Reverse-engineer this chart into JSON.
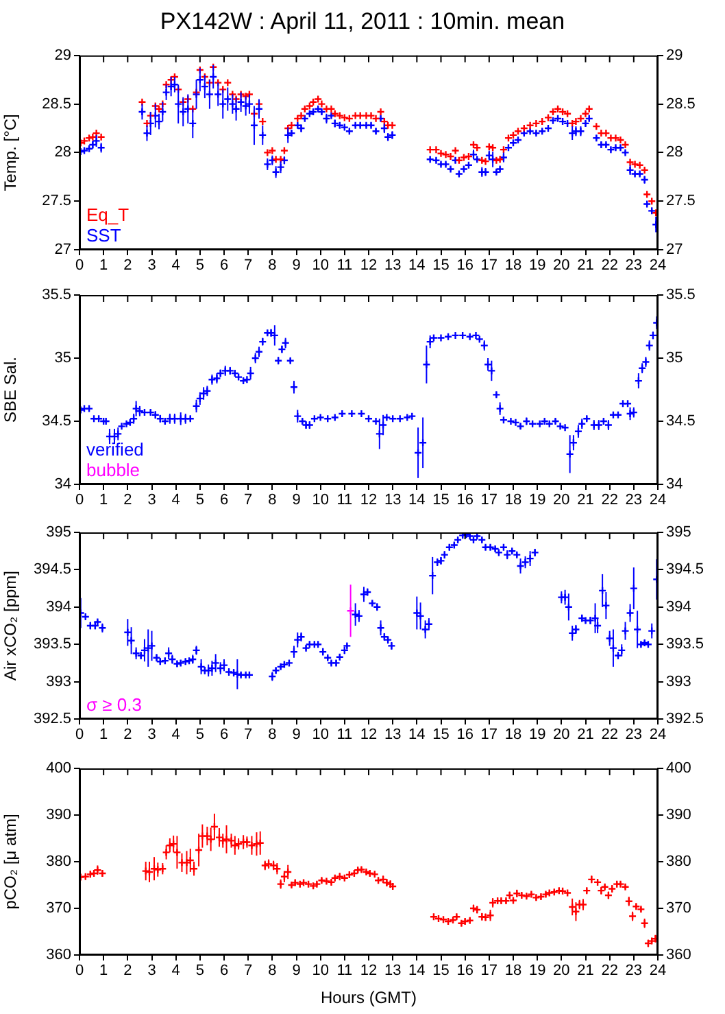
{
  "chart_data": [
    {
      "type": "scatter",
      "title": "PX142W : April 11, 2011 : 10min. mean",
      "ylabel": "Temp. [°C]",
      "xlim": [
        0,
        24
      ],
      "xticks": [
        0,
        1,
        2,
        3,
        4,
        5,
        6,
        7,
        8,
        9,
        10,
        11,
        12,
        13,
        14,
        15,
        16,
        17,
        18,
        19,
        20,
        21,
        22,
        23,
        24
      ],
      "ylim": [
        27,
        29
      ],
      "yticks": [
        27,
        27.5,
        28,
        28.5,
        29
      ],
      "y2lim": [
        27,
        29
      ],
      "y2ticks": [
        27,
        27.5,
        28,
        28.5,
        29
      ],
      "marker": "cross",
      "legend": "bottom left",
      "series": [
        {
          "name": "Eq_T",
          "color": "#ff0000",
          "x": [
            0.05,
            0.2,
            0.4,
            0.55,
            0.7,
            0.9,
            2.6,
            2.8,
            2.95,
            3.15,
            3.3,
            3.45,
            3.6,
            3.8,
            3.95,
            4.1,
            4.3,
            4.5,
            4.7,
            4.85,
            5.0,
            5.2,
            5.4,
            5.55,
            5.75,
            5.95,
            6.15,
            6.35,
            6.5,
            6.7,
            6.9,
            7.05,
            7.25,
            7.45,
            7.6,
            7.8,
            8.0,
            8.15,
            8.35,
            8.5,
            8.65,
            8.8,
            9.05,
            9.2,
            9.35,
            9.55,
            9.7,
            9.9,
            10.05,
            10.25,
            10.45,
            10.6,
            10.8,
            11.0,
            11.2,
            11.45,
            11.65,
            11.9,
            12.1,
            12.3,
            12.5,
            12.65,
            12.8,
            12.98,
            14.55,
            14.8,
            15.0,
            15.2,
            15.4,
            15.6,
            15.75,
            15.95,
            16.15,
            16.35,
            16.5,
            16.7,
            16.85,
            17.0,
            17.15,
            17.3,
            17.45,
            17.6,
            17.8,
            18.0,
            18.2,
            18.45,
            18.7,
            18.95,
            19.2,
            19.45,
            19.65,
            19.85,
            20.05,
            20.25,
            20.45,
            20.6,
            20.8,
            21.0,
            21.15,
            21.45,
            21.65,
            21.85,
            22.05,
            22.25,
            22.45,
            22.65,
            22.85,
            23.05,
            23.25,
            23.45,
            23.55,
            23.75,
            23.92
          ],
          "values": [
            28.1,
            28.12,
            28.15,
            28.16,
            28.2,
            28.16,
            28.52,
            28.3,
            28.38,
            28.48,
            28.45,
            28.5,
            28.7,
            28.75,
            28.78,
            28.65,
            28.52,
            28.55,
            28.45,
            28.62,
            28.85,
            28.78,
            28.72,
            28.88,
            28.72,
            28.65,
            28.72,
            28.6,
            28.55,
            28.6,
            28.58,
            28.6,
            28.4,
            28.5,
            28.32,
            28.0,
            28.02,
            27.93,
            27.93,
            28.02,
            28.25,
            28.28,
            28.35,
            28.38,
            28.45,
            28.48,
            28.52,
            28.55,
            28.5,
            28.45,
            28.45,
            28.4,
            28.38,
            28.36,
            28.35,
            28.38,
            28.38,
            28.38,
            28.38,
            28.35,
            28.42,
            28.32,
            28.28,
            28.28,
            28.03,
            28.03,
            27.99,
            27.98,
            27.96,
            28.02,
            27.92,
            27.95,
            27.96,
            28.08,
            28.05,
            27.92,
            27.91,
            28.06,
            28.05,
            27.92,
            27.93,
            28.03,
            28.15,
            28.18,
            28.22,
            28.25,
            28.28,
            28.3,
            28.32,
            28.36,
            28.42,
            28.45,
            28.42,
            28.4,
            28.3,
            28.32,
            28.35,
            28.4,
            28.45,
            28.27,
            28.2,
            28.2,
            28.15,
            28.15,
            28.13,
            28.08,
            27.9,
            27.88,
            27.87,
            27.82,
            27.57,
            27.5,
            27.38
          ]
        },
        {
          "name": "SST",
          "color": "#0000ff",
          "x": [
            0.05,
            0.2,
            0.4,
            0.55,
            0.7,
            0.9,
            2.6,
            2.8,
            2.95,
            3.15,
            3.3,
            3.45,
            3.6,
            3.8,
            3.95,
            4.1,
            4.3,
            4.5,
            4.7,
            4.85,
            5.0,
            5.2,
            5.4,
            5.55,
            5.75,
            5.95,
            6.15,
            6.35,
            6.5,
            6.7,
            6.9,
            7.05,
            7.25,
            7.45,
            7.6,
            7.8,
            8.0,
            8.15,
            8.35,
            8.5,
            8.65,
            8.8,
            9.05,
            9.2,
            9.35,
            9.55,
            9.7,
            9.9,
            10.05,
            10.25,
            10.45,
            10.6,
            10.8,
            11.0,
            11.2,
            11.45,
            11.65,
            11.9,
            12.1,
            12.3,
            12.5,
            12.65,
            12.8,
            12.98,
            14.55,
            14.8,
            15.0,
            15.2,
            15.4,
            15.6,
            15.75,
            15.95,
            16.15,
            16.35,
            16.5,
            16.7,
            16.85,
            17.0,
            17.15,
            17.3,
            17.45,
            17.6,
            17.8,
            18.0,
            18.2,
            18.45,
            18.7,
            18.95,
            19.2,
            19.45,
            19.65,
            19.85,
            20.05,
            20.25,
            20.45,
            20.6,
            20.8,
            21.0,
            21.15,
            21.45,
            21.65,
            21.85,
            22.05,
            22.25,
            22.45,
            22.65,
            22.85,
            23.05,
            23.25,
            23.45,
            23.55,
            23.75,
            23.92
          ],
          "values": [
            28.01,
            28.02,
            28.04,
            28.08,
            28.12,
            28.05,
            28.42,
            28.2,
            28.3,
            28.38,
            28.32,
            28.42,
            28.62,
            28.68,
            28.7,
            28.5,
            28.42,
            28.45,
            28.3,
            28.6,
            28.75,
            28.68,
            28.6,
            28.78,
            28.6,
            28.5,
            28.55,
            28.5,
            28.45,
            28.52,
            28.48,
            28.5,
            28.28,
            28.45,
            28.18,
            27.88,
            27.92,
            27.8,
            27.85,
            27.92,
            28.18,
            28.2,
            28.28,
            28.25,
            28.35,
            28.4,
            28.42,
            28.45,
            28.42,
            28.35,
            28.38,
            28.3,
            28.28,
            28.26,
            28.22,
            28.28,
            28.28,
            28.28,
            28.28,
            28.22,
            28.35,
            28.25,
            28.16,
            28.18,
            27.93,
            27.92,
            27.88,
            27.88,
            27.83,
            27.92,
            27.78,
            27.83,
            27.87,
            27.98,
            27.93,
            27.8,
            27.8,
            27.97,
            27.93,
            27.8,
            27.83,
            27.95,
            28.05,
            28.1,
            28.13,
            28.2,
            28.22,
            28.2,
            28.22,
            28.25,
            28.33,
            28.35,
            28.32,
            28.3,
            28.2,
            28.22,
            28.22,
            28.3,
            28.35,
            28.15,
            28.08,
            28.08,
            28.03,
            28.05,
            28.05,
            28.0,
            27.82,
            27.78,
            27.78,
            27.72,
            27.47,
            27.4,
            27.26
          ],
          "errors": [
            0.02,
            0.02,
            0.03,
            0.04,
            0.06,
            0.05,
            0.08,
            0.08,
            0.12,
            0.12,
            0.08,
            0.1,
            0.08,
            0.1,
            0.08,
            0.2,
            0.15,
            0.15,
            0.15,
            0.15,
            0.12,
            0.12,
            0.15,
            0.12,
            0.12,
            0.15,
            0.12,
            0.1,
            0.12,
            0.1,
            0.1,
            0.1,
            0.2,
            0.1,
            0.1,
            0.06,
            0.05,
            0.06,
            0.06,
            0.04,
            0.08,
            0.03,
            0.03,
            0.04,
            0.02,
            0.02,
            0.02,
            0.02,
            0.03,
            0.05,
            0.02,
            0.04,
            0.02,
            0.02,
            0.02,
            0.02,
            0.02,
            0.02,
            0.02,
            0.03,
            0.03,
            0.05,
            0.04,
            0.04,
            0.02,
            0.02,
            0.02,
            0.02,
            0.02,
            0.03,
            0.02,
            0.02,
            0.02,
            0.05,
            0.02,
            0.05,
            0.04,
            0.05,
            0.08,
            0.02,
            0.02,
            0.05,
            0.02,
            0.02,
            0.02,
            0.02,
            0.02,
            0.02,
            0.02,
            0.02,
            0.02,
            0.02,
            0.02,
            0.02,
            0.07,
            0.05,
            0.05,
            0.03,
            0.02,
            0.03,
            0.03,
            0.02,
            0.02,
            0.02,
            0.02,
            0.02,
            0.05,
            0.02,
            0.02,
            0.04,
            0.02,
            0.02,
            0.08
          ]
        }
      ]
    },
    {
      "type": "scatter",
      "ylabel": "SBE Sal.",
      "xlim": [
        0,
        24
      ],
      "xticks": [
        0,
        1,
        2,
        3,
        4,
        5,
        6,
        7,
        8,
        9,
        10,
        11,
        12,
        13,
        14,
        15,
        16,
        17,
        18,
        19,
        20,
        21,
        22,
        23,
        24
      ],
      "ylim": [
        34,
        35.5
      ],
      "yticks": [
        34,
        34.5,
        35,
        35.5
      ],
      "y2lim": [
        34,
        35.5
      ],
      "y2ticks": [
        34,
        34.5,
        35,
        35.5
      ],
      "marker": "cross",
      "legend": "bottom left",
      "series": [
        {
          "name": "verified",
          "color": "#0000ff",
          "x": [
            0.05,
            0.2,
            0.4,
            0.6,
            0.8,
            1.0,
            1.1,
            1.25,
            1.45,
            1.6,
            1.75,
            1.95,
            2.1,
            2.25,
            2.35,
            2.5,
            2.7,
            2.95,
            3.15,
            3.35,
            3.55,
            3.75,
            3.95,
            4.2,
            4.4,
            4.6,
            4.85,
            5.0,
            5.15,
            5.3,
            5.5,
            5.7,
            5.85,
            6.05,
            6.25,
            6.45,
            6.6,
            6.8,
            6.95,
            7.1,
            7.3,
            7.45,
            7.6,
            7.8,
            7.95,
            8.1,
            8.25,
            8.4,
            8.55,
            8.75,
            8.9,
            9.05,
            9.25,
            9.4,
            9.55,
            9.75,
            10.0,
            10.3,
            10.6,
            10.9,
            11.3,
            11.7,
            12.0,
            12.3,
            12.45,
            12.6,
            12.75,
            13.0,
            13.3,
            13.6,
            13.8,
            14.05,
            14.25,
            14.4,
            14.55,
            14.7,
            15.0,
            15.3,
            15.6,
            15.9,
            16.2,
            16.45,
            16.6,
            16.8,
            16.95,
            17.1,
            17.3,
            17.45,
            17.6,
            17.9,
            18.1,
            18.3,
            18.55,
            18.8,
            19.1,
            19.3,
            19.5,
            19.75,
            19.95,
            20.15,
            20.35,
            20.5,
            20.7,
            20.85,
            21.05,
            21.35,
            21.55,
            21.75,
            21.95,
            22.15,
            22.35,
            22.55,
            22.75,
            22.85,
            23.0,
            23.2,
            23.35,
            23.5,
            23.65,
            23.8,
            23.95
          ],
          "values": [
            34.59,
            34.6,
            34.6,
            34.52,
            34.52,
            34.5,
            34.5,
            34.38,
            34.38,
            34.4,
            34.46,
            34.48,
            34.49,
            34.52,
            34.6,
            34.58,
            34.57,
            34.57,
            34.55,
            34.52,
            34.5,
            34.52,
            34.52,
            34.52,
            34.52,
            34.52,
            34.62,
            34.68,
            34.72,
            34.74,
            34.83,
            34.84,
            34.88,
            34.9,
            34.9,
            34.88,
            34.85,
            34.82,
            34.83,
            34.88,
            35.0,
            35.05,
            35.13,
            35.2,
            35.2,
            35.18,
            34.98,
            35.07,
            35.12,
            34.98,
            34.77,
            34.54,
            34.5,
            34.47,
            34.47,
            34.52,
            34.53,
            34.52,
            34.53,
            34.56,
            34.56,
            34.56,
            34.52,
            34.5,
            34.4,
            34.47,
            34.53,
            34.52,
            34.52,
            34.53,
            34.54,
            34.25,
            34.33,
            34.95,
            35.13,
            35.16,
            35.16,
            35.17,
            35.18,
            35.18,
            35.17,
            35.18,
            35.15,
            35.1,
            34.95,
            34.9,
            34.71,
            34.6,
            34.51,
            34.5,
            34.49,
            34.46,
            34.5,
            34.48,
            34.48,
            34.5,
            34.48,
            34.5,
            34.46,
            34.45,
            34.24,
            34.33,
            34.42,
            34.48,
            34.52,
            34.47,
            34.47,
            34.5,
            34.47,
            34.55,
            34.55,
            34.64,
            34.64,
            34.56,
            34.57,
            34.82,
            34.92,
            34.97,
            35.1,
            35.18,
            35.28
          ],
          "errors": [
            null,
            null,
            0.02,
            null,
            null,
            null,
            null,
            0.06,
            0.06,
            0.05,
            null,
            null,
            0.02,
            0.04,
            0.06,
            0.04,
            0.02,
            0.02,
            0.03,
            0.03,
            0.02,
            0.04,
            0.04,
            0.05,
            0.04,
            0.02,
            0.05,
            0.05,
            0.05,
            0.04,
            0.04,
            0.04,
            0.03,
            0.04,
            0.03,
            0.02,
            null,
            null,
            null,
            0.05,
            0.04,
            0.04,
            0.03,
            0.02,
            0.03,
            0.08,
            0.03,
            0.03,
            0.04,
            0.02,
            0.05,
            0.05,
            0.02,
            0.03,
            0.03,
            null,
            null,
            null,
            null,
            null,
            null,
            null,
            null,
            null,
            0.12,
            0.08,
            null,
            null,
            null,
            null,
            null,
            0.2,
            0.2,
            0.15,
            0.05,
            null,
            null,
            null,
            null,
            null,
            null,
            null,
            null,
            0.04,
            0.05,
            0.08,
            0.02,
            0.05,
            null,
            null,
            null,
            0.02,
            0.03,
            null,
            null,
            null,
            null,
            0.02,
            null,
            null,
            0.15,
            0.06,
            0.05,
            0.04,
            0.02,
            0.04,
            0.04,
            0.02,
            0.04,
            null,
            null,
            null,
            null,
            0.05,
            0.04,
            0.06,
            0.04,
            0.04,
            0.04,
            0.03,
            0.05
          ]
        },
        {
          "name": "bubble",
          "color": "#ff00ff"
        }
      ]
    },
    {
      "type": "scatter",
      "ylabel": "Air xCO₂ [ppm]",
      "xlim": [
        0,
        24
      ],
      "xticks": [
        0,
        1,
        2,
        3,
        4,
        5,
        6,
        7,
        8,
        9,
        10,
        11,
        12,
        13,
        14,
        15,
        16,
        17,
        18,
        19,
        20,
        21,
        22,
        23,
        24
      ],
      "ylim": [
        392.5,
        395
      ],
      "yticks": [
        392.5,
        393,
        393.5,
        394,
        394.5,
        395
      ],
      "y2lim": [
        392.5,
        395
      ],
      "y2ticks": [
        392.5,
        393,
        393.5,
        394,
        394.5,
        395
      ],
      "marker": "cross",
      "legend": "bottom left",
      "series": [
        {
          "color": "#0000ff",
          "x": [
            0.05,
            0.25,
            0.45,
            0.65,
            0.75,
            0.95,
            2.0,
            2.15,
            2.35,
            2.55,
            2.7,
            2.85,
            3.0,
            3.2,
            3.35,
            3.55,
            3.7,
            3.85,
            4.05,
            4.2,
            4.4,
            4.55,
            4.7,
            4.85,
            5.05,
            5.2,
            5.35,
            5.5,
            5.65,
            5.85,
            6.0,
            6.2,
            6.4,
            6.55,
            6.7,
            6.9,
            7.05,
            8.0,
            8.15,
            8.35,
            8.5,
            8.7,
            8.9,
            9.05,
            9.2,
            9.4,
            9.55,
            9.75,
            9.9,
            10.1,
            10.3,
            10.45,
            10.65,
            10.8,
            11.0,
            11.1,
            11.45,
            11.6,
            11.8,
            11.95,
            12.15,
            12.35,
            12.5,
            12.65,
            12.8,
            12.95,
            14.0,
            14.15,
            14.35,
            14.5,
            14.65,
            14.85,
            15.0,
            15.15,
            15.35,
            15.55,
            15.7,
            15.9,
            16.05,
            16.2,
            16.35,
            16.5,
            16.7,
            16.85,
            17.05,
            17.25,
            17.4,
            17.6,
            17.75,
            17.95,
            18.15,
            18.3,
            18.5,
            18.7,
            18.9,
            20.0,
            20.15,
            20.3,
            20.45,
            20.6,
            20.85,
            21.0,
            21.2,
            21.4,
            21.5,
            21.7,
            21.85,
            22.0,
            22.15,
            22.35,
            22.5,
            22.65,
            22.85,
            23.0,
            23.15,
            23.3,
            23.45,
            23.6,
            23.75,
            23.95
          ],
          "values": [
            393.92,
            393.87,
            393.75,
            393.75,
            393.8,
            393.72,
            393.66,
            393.55,
            393.38,
            393.35,
            393.42,
            393.45,
            393.48,
            393.32,
            393.27,
            393.28,
            393.38,
            393.3,
            393.24,
            393.25,
            393.27,
            393.28,
            393.3,
            393.42,
            393.2,
            393.15,
            393.15,
            393.18,
            393.25,
            393.18,
            393.22,
            393.13,
            393.12,
            393.1,
            393.09,
            393.09,
            393.09,
            393.07,
            393.15,
            393.2,
            393.23,
            393.25,
            393.4,
            393.56,
            393.6,
            393.45,
            393.5,
            393.5,
            393.5,
            393.4,
            393.32,
            393.25,
            393.25,
            393.33,
            393.42,
            393.48,
            393.9,
            393.88,
            394.17,
            394.2,
            394.05,
            394.0,
            393.72,
            393.6,
            393.56,
            393.48,
            393.92,
            393.88,
            393.7,
            393.77,
            394.42,
            394.6,
            394.62,
            394.7,
            394.8,
            394.83,
            394.9,
            394.96,
            394.97,
            394.95,
            394.9,
            394.95,
            394.9,
            394.8,
            394.8,
            394.78,
            394.73,
            394.8,
            394.7,
            394.75,
            394.7,
            394.55,
            394.6,
            394.65,
            394.73,
            394.13,
            394.13,
            394.0,
            393.65,
            393.7,
            393.85,
            393.82,
            393.82,
            393.85,
            393.75,
            394.22,
            394.02,
            393.58,
            393.45,
            393.35,
            393.42,
            393.68,
            393.92,
            394.25,
            393.7,
            393.5,
            393.52,
            393.5,
            393.68,
            394.37
          ],
          "errors": [
            0.2,
            0.03,
            0.05,
            0.05,
            0.03,
            0.06,
            0.18,
            0.18,
            0.08,
            0.05,
            0.15,
            0.25,
            0.2,
            0.05,
            0.04,
            0.04,
            0.08,
            0.06,
            0.04,
            0.04,
            0.04,
            0.04,
            0.06,
            0.06,
            0.1,
            0.05,
            0.08,
            0.1,
            0.12,
            0.08,
            0.08,
            0.05,
            0.05,
            0.2,
            0.03,
            0.02,
            0.02,
            0.06,
            0.04,
            0.03,
            0.03,
            0.04,
            0.08,
            0.1,
            0.06,
            0.03,
            0.04,
            0.04,
            0.03,
            0.05,
            0.03,
            0.03,
            0.04,
            0.04,
            0.05,
            0.03,
            0.15,
            0.08,
            0.1,
            0.05,
            0.03,
            0.05,
            0.1,
            0.05,
            0.05,
            0.05,
            0.22,
            0.18,
            0.12,
            0.08,
            0.25,
            0.05,
            0.05,
            0.05,
            0.04,
            0.03,
            0.03,
            0.03,
            0.03,
            0.03,
            0.03,
            0.03,
            0.03,
            0.03,
            0.03,
            0.03,
            0.03,
            0.03,
            0.06,
            0.03,
            0.03,
            0.1,
            0.08,
            0.1,
            0.05,
            0.08,
            0.1,
            0.18,
            0.1,
            0.06,
            0.05,
            0.04,
            0.05,
            0.2,
            0.1,
            0.22,
            0.18,
            0.1,
            0.25,
            0.05,
            0.08,
            0.12,
            0.12,
            0.28,
            0.25,
            0.03,
            0.03,
            0.03,
            0.1,
            0.27
          ]
        },
        {
          "name": "σ ≥ 0.3",
          "color": "#ff00ff",
          "x": [
            11.25
          ],
          "values": [
            393.95
          ],
          "errors": [
            0.35
          ]
        }
      ]
    },
    {
      "type": "scatter",
      "ylabel": "pCO₂ [μ atm]",
      "xlabel": "Hours (GMT)",
      "xlim": [
        0,
        24
      ],
      "xticks": [
        0,
        1,
        2,
        3,
        4,
        5,
        6,
        7,
        8,
        9,
        10,
        11,
        12,
        13,
        14,
        15,
        16,
        17,
        18,
        19,
        20,
        21,
        22,
        23,
        24
      ],
      "ylim": [
        360,
        400
      ],
      "yticks": [
        360,
        370,
        380,
        390,
        400
      ],
      "y2lim": [
        360,
        400
      ],
      "y2ticks": [
        360,
        370,
        380,
        390,
        400
      ],
      "marker": "cross",
      "series": [
        {
          "color": "#ff0000",
          "x": [
            0.05,
            0.25,
            0.45,
            0.6,
            0.75,
            0.95,
            2.75,
            2.9,
            3.1,
            3.25,
            3.45,
            3.6,
            3.75,
            3.9,
            4.05,
            4.25,
            4.45,
            4.6,
            4.75,
            4.95,
            5.1,
            5.3,
            5.45,
            5.6,
            5.8,
            5.95,
            6.1,
            6.3,
            6.45,
            6.6,
            6.8,
            6.95,
            7.15,
            7.35,
            7.5,
            7.7,
            7.85,
            8.05,
            8.2,
            8.35,
            8.5,
            8.65,
            8.8,
            8.95,
            9.15,
            9.3,
            9.5,
            9.7,
            9.85,
            10.05,
            10.25,
            10.45,
            10.6,
            10.8,
            11.0,
            11.2,
            11.4,
            11.55,
            11.7,
            11.9,
            12.05,
            12.25,
            12.4,
            12.6,
            12.75,
            12.9,
            13.0,
            14.7,
            14.9,
            15.1,
            15.3,
            15.5,
            15.65,
            15.85,
            16.0,
            16.2,
            16.35,
            16.5,
            16.7,
            16.85,
            17.05,
            17.15,
            17.35,
            17.5,
            17.7,
            17.85,
            18.0,
            18.15,
            18.35,
            18.55,
            18.75,
            18.95,
            19.15,
            19.35,
            19.5,
            19.7,
            19.9,
            20.05,
            20.25,
            20.45,
            20.6,
            20.75,
            20.9,
            21.05,
            21.25,
            21.5,
            21.65,
            21.8,
            21.95,
            22.1,
            22.3,
            22.45,
            22.65,
            22.8,
            22.95,
            23.1,
            23.3,
            23.45,
            23.6,
            23.75,
            23.9
          ],
          "values": [
            376.7,
            376.8,
            377.3,
            377.5,
            378.2,
            377.5,
            378,
            377.8,
            378.5,
            378.3,
            378.5,
            382,
            383.5,
            383.8,
            382,
            379.8,
            379.8,
            380.3,
            378.5,
            382.5,
            385.5,
            385.5,
            384.8,
            387.5,
            385.2,
            384.5,
            384.8,
            384.5,
            383.5,
            383.8,
            384.2,
            384.2,
            383.5,
            383.8,
            384,
            379.2,
            379.5,
            379.2,
            378.5,
            375.2,
            376.8,
            377.8,
            375,
            375.5,
            375.2,
            375.5,
            375.2,
            374.8,
            375.2,
            376,
            375.8,
            375.6,
            376.5,
            376.8,
            376.5,
            377.2,
            377.5,
            378.2,
            378.3,
            377.8,
            377.5,
            377.3,
            376,
            376.2,
            375.5,
            375.2,
            374.7,
            368.2,
            367.8,
            367.6,
            367.2,
            367.5,
            368.2,
            366.8,
            367.2,
            367.4,
            370,
            369.7,
            368.2,
            368.1,
            368.5,
            371.2,
            371.6,
            371.6,
            371.6,
            372.8,
            371.7,
            373.2,
            372.8,
            372.6,
            373,
            372.3,
            372.5,
            373,
            373.3,
            373.5,
            373.8,
            373.7,
            373.3,
            370.3,
            369.3,
            370.8,
            370.8,
            373.8,
            376.2,
            375.6,
            373.8,
            374.6,
            372.8,
            374.2,
            375.2,
            375.2,
            374.6,
            371.5,
            368.3,
            370.4,
            369.8,
            366.8,
            362.5,
            363,
            363.5
          ],
          "errors": [
            0.5,
            0.5,
            0.7,
            0.7,
            1,
            0.7,
            2,
            2.2,
            2.5,
            1.5,
            1.2,
            1.5,
            1.5,
            1.8,
            3.5,
            2,
            2.5,
            2.5,
            1.5,
            3.5,
            2.5,
            2,
            2.5,
            2.8,
            2,
            1.5,
            3,
            1.5,
            2,
            1.2,
            1.5,
            1.2,
            2,
            2.5,
            2.5,
            1,
            1,
            1,
            1.2,
            1,
            1.2,
            1.5,
            0.5,
            0.5,
            0.5,
            0.5,
            0.5,
            0.5,
            0.5,
            0.5,
            0.5,
            0.5,
            0.5,
            0.8,
            0.5,
            0.5,
            0.5,
            0.5,
            0.5,
            0.5,
            0.5,
            0.5,
            0.5,
            0.8,
            0.8,
            0.8,
            0.5,
            0.5,
            0.5,
            0.5,
            0.5,
            0.5,
            0.5,
            0.5,
            0.5,
            0.5,
            0.8,
            0.8,
            0.8,
            0.8,
            1.2,
            1,
            0.5,
            0.5,
            0.5,
            0.8,
            0.5,
            0.8,
            0.5,
            0.5,
            0.5,
            0.5,
            0.5,
            0.5,
            0.5,
            0.5,
            0.5,
            0.5,
            0.5,
            1.8,
            2,
            1,
            1.2,
            0.5,
            0.8,
            0.5,
            0.8,
            0.5,
            0.8,
            0.8,
            0.5,
            0.5,
            0.5,
            1,
            1,
            0.5,
            0.5,
            1,
            0.8,
            0.5,
            0.8
          ]
        }
      ]
    }
  ]
}
